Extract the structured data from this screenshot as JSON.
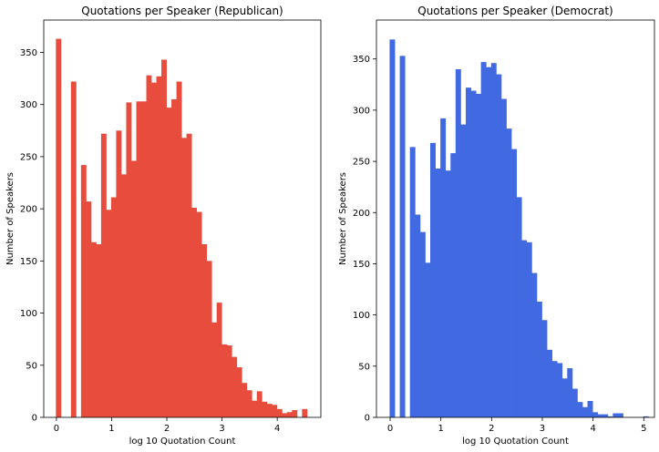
{
  "chart_data": [
    {
      "type": "bar",
      "subtype": "histogram",
      "title": "Quotations per Speaker (Republican)",
      "xlabel": "log 10 Quotation Count",
      "ylabel": "Number of Speakers",
      "color": "#E84C3D",
      "xlim": [
        -0.23,
        4.79
      ],
      "ylim": [
        0,
        381
      ],
      "xticks": [
        0,
        1,
        2,
        3,
        4
      ],
      "yticks": [
        0,
        50,
        100,
        150,
        200,
        250,
        300,
        350
      ],
      "bin_width": 0.091,
      "bin_start": -0.01,
      "values": [
        363,
        0,
        0,
        322,
        0,
        242,
        207,
        168,
        166,
        272,
        199,
        211,
        275,
        233,
        302,
        246,
        303,
        303,
        328,
        321,
        327,
        343,
        297,
        305,
        322,
        268,
        272,
        201,
        197,
        166,
        150,
        91,
        110,
        70,
        69,
        58,
        48,
        33,
        26,
        16,
        25,
        15,
        13,
        12,
        8,
        4,
        5,
        7,
        0,
        8
      ],
      "grid": false,
      "legend": "none"
    },
    {
      "type": "bar",
      "subtype": "histogram",
      "title": "Quotations per Speaker (Democrat)",
      "xlabel": "log 10 Quotation Count",
      "ylabel": "Number of Speakers",
      "color": "#4169E1",
      "xlim": [
        -0.27,
        5.21
      ],
      "ylim": [
        0,
        388
      ],
      "xticks": [
        0,
        1,
        2,
        3,
        4,
        5
      ],
      "yticks": [
        0,
        50,
        100,
        150,
        200,
        250,
        300,
        350
      ],
      "bin_width": 0.1,
      "bin_start": -0.01,
      "values": [
        369,
        0,
        353,
        0,
        264,
        198,
        181,
        151,
        268,
        243,
        292,
        241,
        258,
        340,
        286,
        322,
        319,
        316,
        347,
        342,
        346,
        335,
        311,
        282,
        262,
        215,
        173,
        171,
        141,
        113,
        95,
        66,
        55,
        53,
        38,
        48,
        28,
        15,
        10,
        16,
        5,
        3,
        3,
        1,
        4,
        4,
        0,
        0,
        0,
        0,
        1
      ],
      "grid": false,
      "legend": "none"
    }
  ]
}
